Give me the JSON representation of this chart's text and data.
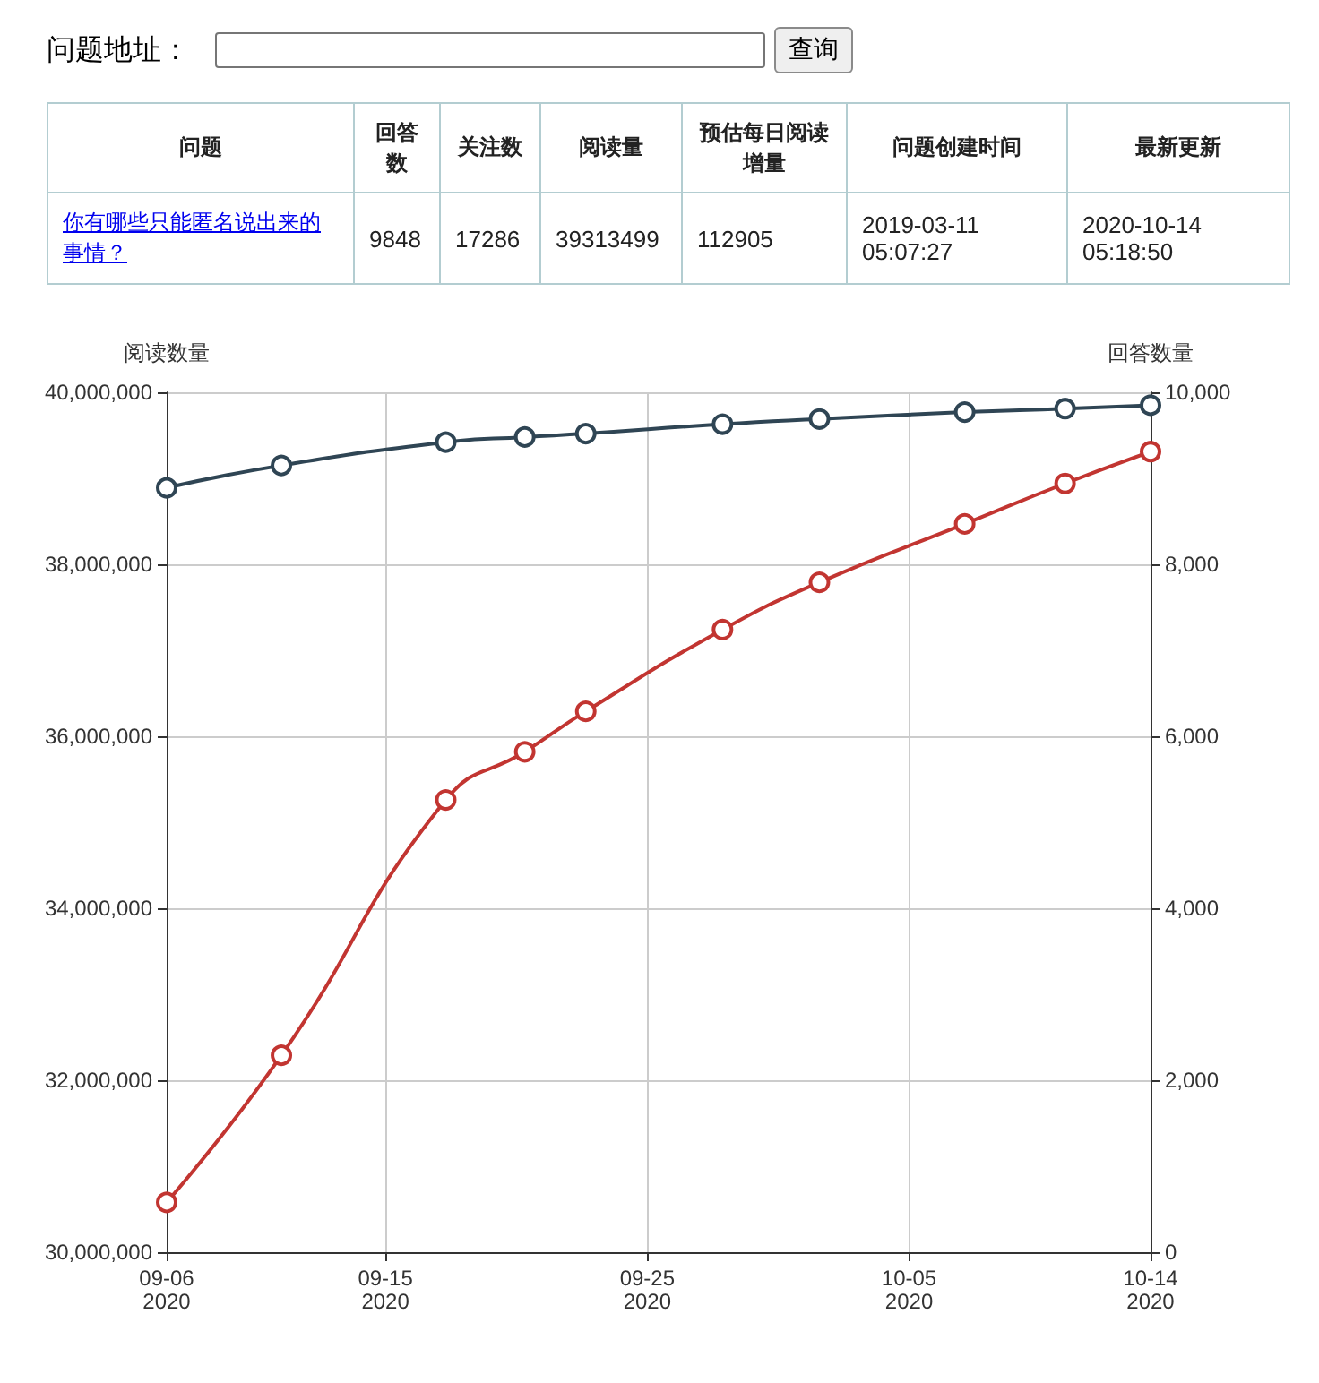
{
  "chart_data": [
    {
      "type": "other",
      "title": "问题地址：",
      "annotations": [
        "查询",
        "问题",
        "回答数",
        "关注数",
        "阅读量",
        "预估每日阅读增量",
        "问题创建时间",
        "最新更新",
        "你有哪些只能匿名说出来的事情？",
        "9848",
        "17286",
        "39313499",
        "112905",
        "2019-03-11 05:07:27",
        "2020-10-14 05:18:50"
      ]
    },
    {
      "type": "line",
      "x": [
        "2020-09-06T15:30",
        "2020-09-11T00:40",
        "2020-09-17T07:20",
        "2020-09-20T07:45",
        "2020-09-22T15:40",
        "2020-09-27T21:00",
        "2020-10-01T13:50",
        "2020-10-07T03:00",
        "2020-10-10T23:00",
        "2020-10-14T05:20"
      ],
      "series": [
        {
          "color": "#c23531",
          "values": [
            30580000,
            32290000,
            35260000,
            35820000,
            36290000,
            37240000,
            37790000,
            38470000,
            38940000,
            39310000
          ]
        },
        {
          "color": "#2f4554",
          "axis": "y2",
          "values": [
            8890,
            9150,
            9420,
            9480,
            9520,
            9630,
            9690,
            9770,
            9810,
            9850
          ]
        }
      ],
      "ylabel": "阅读数量",
      "y2label": "回答数量",
      "xlim": [
        "2020-09-06T15:30",
        "2020-10-14T05:20"
      ],
      "xticks": [
        {
          "value": "2020-09-06T15:30",
          "label": "09-06\n2020"
        },
        {
          "value": "2020-09-15",
          "label": "09-15\n2020"
        },
        {
          "value": "2020-09-25",
          "label": "09-25\n2020"
        },
        {
          "value": "2020-10-05",
          "label": "10-05\n2020"
        },
        {
          "value": "2020-10-14T05:20",
          "label": "10-14\n2020"
        }
      ],
      "ylim": [
        30000000,
        40000000
      ],
      "yticks": [
        {
          "value": 30000000,
          "label": "30,000,000"
        },
        {
          "value": 32000000,
          "label": "32,000,000"
        },
        {
          "value": 34000000,
          "label": "34,000,000"
        },
        {
          "value": 36000000,
          "label": "36,000,000"
        },
        {
          "value": 38000000,
          "label": "38,000,000"
        },
        {
          "value": 40000000,
          "label": "40,000,000"
        }
      ],
      "y2lim": [
        0,
        10000
      ],
      "y2ticks": [
        0,
        {
          "value": 2000,
          "label": "2,000"
        },
        {
          "value": 4000,
          "label": "4,000"
        },
        {
          "value": 6000,
          "label": "6,000"
        },
        {
          "value": 8000,
          "label": "8,000"
        },
        {
          "value": 10000,
          "label": "10,000"
        }
      ],
      "grid": true,
      "marker": "circle",
      "line_style": "solid"
    }
  ]
}
